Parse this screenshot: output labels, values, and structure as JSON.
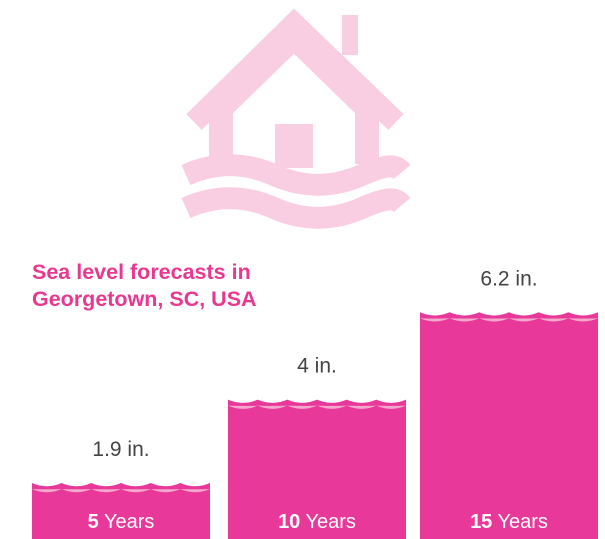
{
  "chart_data": {
    "type": "bar",
    "title": "Sea level forecasts in Georgetown, SC, USA",
    "title_lines": [
      "Sea level forecasts in",
      "Georgetown, SC, USA"
    ],
    "categories": [
      {
        "num": "5",
        "unit": "Years"
      },
      {
        "num": "10",
        "unit": "Years"
      },
      {
        "num": "15",
        "unit": "Years"
      }
    ],
    "values": [
      1.9,
      4,
      6.2
    ],
    "value_labels": [
      "1.9 in.",
      "4 in.",
      "6.2 in."
    ],
    "xlabel": "",
    "ylabel": "",
    "grid": false,
    "legend": "none"
  },
  "icon": "flooded-house-icon",
  "colors": {
    "bar": "#e8399b",
    "wave": "#f3a9cb",
    "icon": "#f9cde2",
    "title": "#e8388f",
    "value_label": "#444444",
    "category_label": "#ffffff"
  }
}
